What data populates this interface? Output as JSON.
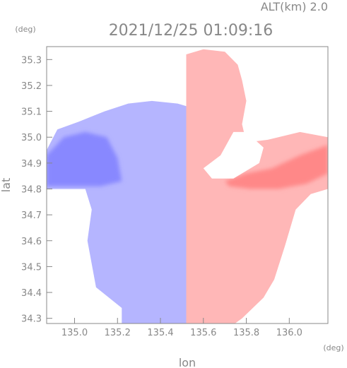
{
  "chart_data": {
    "type": "heatmap",
    "header": {
      "altitude_label": "ALT(km) 2.0",
      "timestamp": "2021/12/25 01:09:16"
    },
    "xlabel": "lon",
    "ylabel": "lat",
    "x_unit": "(deg)",
    "y_unit": "(deg)",
    "xlim": [
      134.87,
      136.18
    ],
    "ylim": [
      34.28,
      35.35
    ],
    "x_ticks": [
      135.0,
      135.2,
      135.4,
      135.6,
      135.8,
      136.0
    ],
    "x_tick_labels": [
      "135.0",
      "135.2",
      "135.4",
      "135.6",
      "135.8",
      "136.0"
    ],
    "y_ticks": [
      34.3,
      34.4,
      34.5,
      34.6,
      34.7,
      34.8,
      34.9,
      35.0,
      35.1,
      35.2,
      35.3
    ],
    "y_tick_labels": [
      "34.3",
      "34.4",
      "34.5",
      "34.6",
      "34.7",
      "34.8",
      "34.9",
      "35.0",
      "35.1",
      "35.2",
      "35.3"
    ],
    "grid": false,
    "colorscale": {
      "negative": "#5a5aff",
      "zero": "#ffffff",
      "positive": "#ff6060"
    },
    "radar_center": [
      135.52,
      34.86
    ],
    "divider_lon": 135.52,
    "field_regions": [
      {
        "name": "west-echo",
        "sign": "negative",
        "intensity": 0.45,
        "polygon": [
          [
            135.22,
            34.2
          ],
          [
            135.22,
            34.34
          ],
          [
            135.1,
            34.42
          ],
          [
            135.06,
            34.6
          ],
          [
            135.08,
            34.72
          ],
          [
            135.05,
            34.8
          ],
          [
            134.87,
            34.8
          ],
          [
            134.87,
            34.95
          ],
          [
            134.92,
            35.03
          ],
          [
            135.02,
            35.06
          ],
          [
            135.14,
            35.1
          ],
          [
            135.25,
            35.13
          ],
          [
            135.36,
            35.14
          ],
          [
            135.48,
            35.13
          ],
          [
            135.52,
            35.12
          ],
          [
            135.52,
            34.2
          ]
        ]
      },
      {
        "name": "west-strong-echo",
        "sign": "negative",
        "intensity": 0.72,
        "polygon": [
          [
            134.87,
            34.81
          ],
          [
            134.87,
            34.93
          ],
          [
            134.95,
            35.0
          ],
          [
            135.05,
            35.02
          ],
          [
            135.15,
            35.0
          ],
          [
            135.2,
            34.92
          ],
          [
            135.22,
            34.83
          ],
          [
            135.12,
            34.81
          ]
        ]
      },
      {
        "name": "east-echo",
        "sign": "positive",
        "intensity": 0.45,
        "polygon": [
          [
            135.52,
            34.2
          ],
          [
            135.52,
            35.32
          ],
          [
            135.6,
            35.34
          ],
          [
            135.7,
            35.33
          ],
          [
            135.76,
            35.28
          ],
          [
            135.78,
            35.22
          ],
          [
            135.8,
            35.14
          ],
          [
            135.78,
            35.05
          ],
          [
            135.8,
            34.98
          ],
          [
            135.9,
            34.99
          ],
          [
            136.05,
            35.02
          ],
          [
            136.18,
            35.0
          ],
          [
            136.18,
            34.8
          ],
          [
            136.1,
            34.78
          ],
          [
            136.03,
            34.72
          ],
          [
            135.98,
            34.58
          ],
          [
            135.93,
            34.45
          ],
          [
            135.88,
            34.38
          ],
          [
            135.78,
            34.3
          ],
          [
            135.68,
            34.24
          ]
        ]
      },
      {
        "name": "east-strong-echo",
        "sign": "positive",
        "intensity": 0.75,
        "polygon": [
          [
            135.7,
            34.83
          ],
          [
            135.8,
            34.86
          ],
          [
            135.92,
            34.88
          ],
          [
            136.05,
            34.93
          ],
          [
            136.18,
            34.97
          ],
          [
            136.18,
            34.86
          ],
          [
            136.08,
            34.82
          ],
          [
            135.95,
            34.8
          ],
          [
            135.82,
            34.8
          ],
          [
            135.72,
            34.81
          ]
        ]
      }
    ],
    "gaps": [
      {
        "name": "east-gap",
        "polygon": [
          [
            135.6,
            34.88
          ],
          [
            135.68,
            34.93
          ],
          [
            135.74,
            35.02
          ],
          [
            135.8,
            35.02
          ],
          [
            135.88,
            34.96
          ],
          [
            135.86,
            34.9
          ],
          [
            135.74,
            34.84
          ],
          [
            135.64,
            34.84
          ]
        ]
      },
      {
        "name": "northeast-notch",
        "polygon": [
          [
            135.8,
            35.14
          ],
          [
            135.86,
            35.16
          ],
          [
            135.9,
            35.1
          ],
          [
            135.86,
            35.04
          ],
          [
            135.8,
            35.05
          ]
        ]
      }
    ]
  }
}
